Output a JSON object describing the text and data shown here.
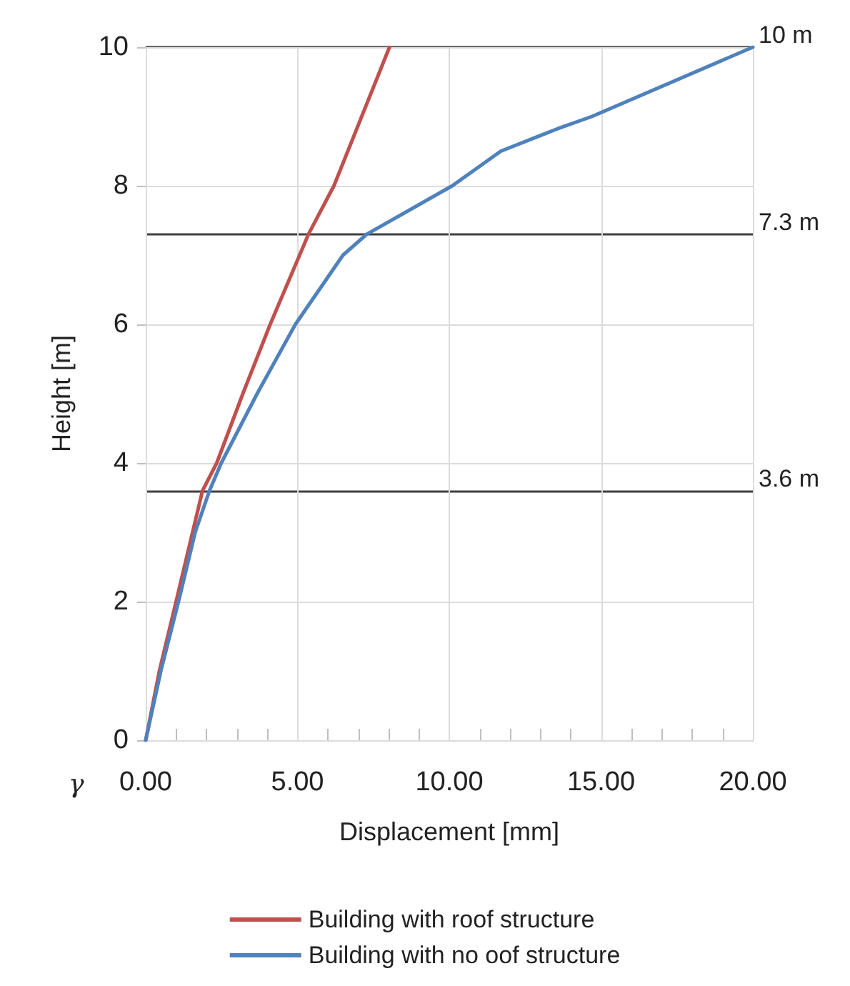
{
  "chart_data": {
    "type": "line",
    "xlabel": "Displacement [mm]",
    "ylabel": "Height [m]",
    "xlim": [
      0,
      20
    ],
    "ylim": [
      0,
      10
    ],
    "xticks": [
      {
        "value": 0,
        "label": "0.00"
      },
      {
        "value": 1,
        "label": null
      },
      {
        "value": 2,
        "label": null
      },
      {
        "value": 3,
        "label": null
      },
      {
        "value": 4,
        "label": null
      },
      {
        "value": 5,
        "label": "5.00"
      },
      {
        "value": 6,
        "label": null
      },
      {
        "value": 7,
        "label": null
      },
      {
        "value": 8,
        "label": null
      },
      {
        "value": 9,
        "label": null
      },
      {
        "value": 10,
        "label": "10.00"
      },
      {
        "value": 11,
        "label": null
      },
      {
        "value": 12,
        "label": null
      },
      {
        "value": 13,
        "label": null
      },
      {
        "value": 14,
        "label": null
      },
      {
        "value": 15,
        "label": "15.00"
      },
      {
        "value": 16,
        "label": null
      },
      {
        "value": 17,
        "label": null
      },
      {
        "value": 18,
        "label": null
      },
      {
        "value": 19,
        "label": null
      },
      {
        "value": 20,
        "label": "20.00"
      }
    ],
    "yticks": [
      0,
      2,
      4,
      6,
      8,
      10
    ],
    "grid": true,
    "legend": "bottom",
    "marker": "none",
    "line_style": "solid",
    "series": [
      {
        "name": "Building with roof structure",
        "color": "#c0504d",
        "x": [
          0,
          0.45,
          1.0,
          1.87,
          2.34,
          3.2,
          4.1,
          5.36,
          6.2,
          8.03
        ],
        "values": [
          0,
          1,
          2,
          3.6,
          4,
          5,
          6,
          7.3,
          8,
          10
        ]
      },
      {
        "name": "Building with no oof structure",
        "color": "#4f81bd",
        "x": [
          0,
          0.5,
          1.08,
          1.63,
          2.1,
          2.49,
          3.67,
          4.93,
          6.5,
          7.28,
          10.1,
          11.7,
          13.55,
          14.7,
          20
        ],
        "values": [
          0,
          1,
          2,
          3,
          3.6,
          4,
          5,
          6,
          7,
          7.3,
          8,
          8.5,
          8.82,
          9,
          10
        ]
      }
    ],
    "ref_lines": [
      {
        "axis": "y",
        "value": 10,
        "label": "10 m",
        "color": "#404040"
      },
      {
        "axis": "y",
        "value": 7.3,
        "label": "7.3 m",
        "color": "#404040"
      },
      {
        "axis": "y",
        "value": 3.6,
        "label": "3.6 m",
        "color": "#404040"
      }
    ],
    "annotations": [
      "γ"
    ]
  }
}
